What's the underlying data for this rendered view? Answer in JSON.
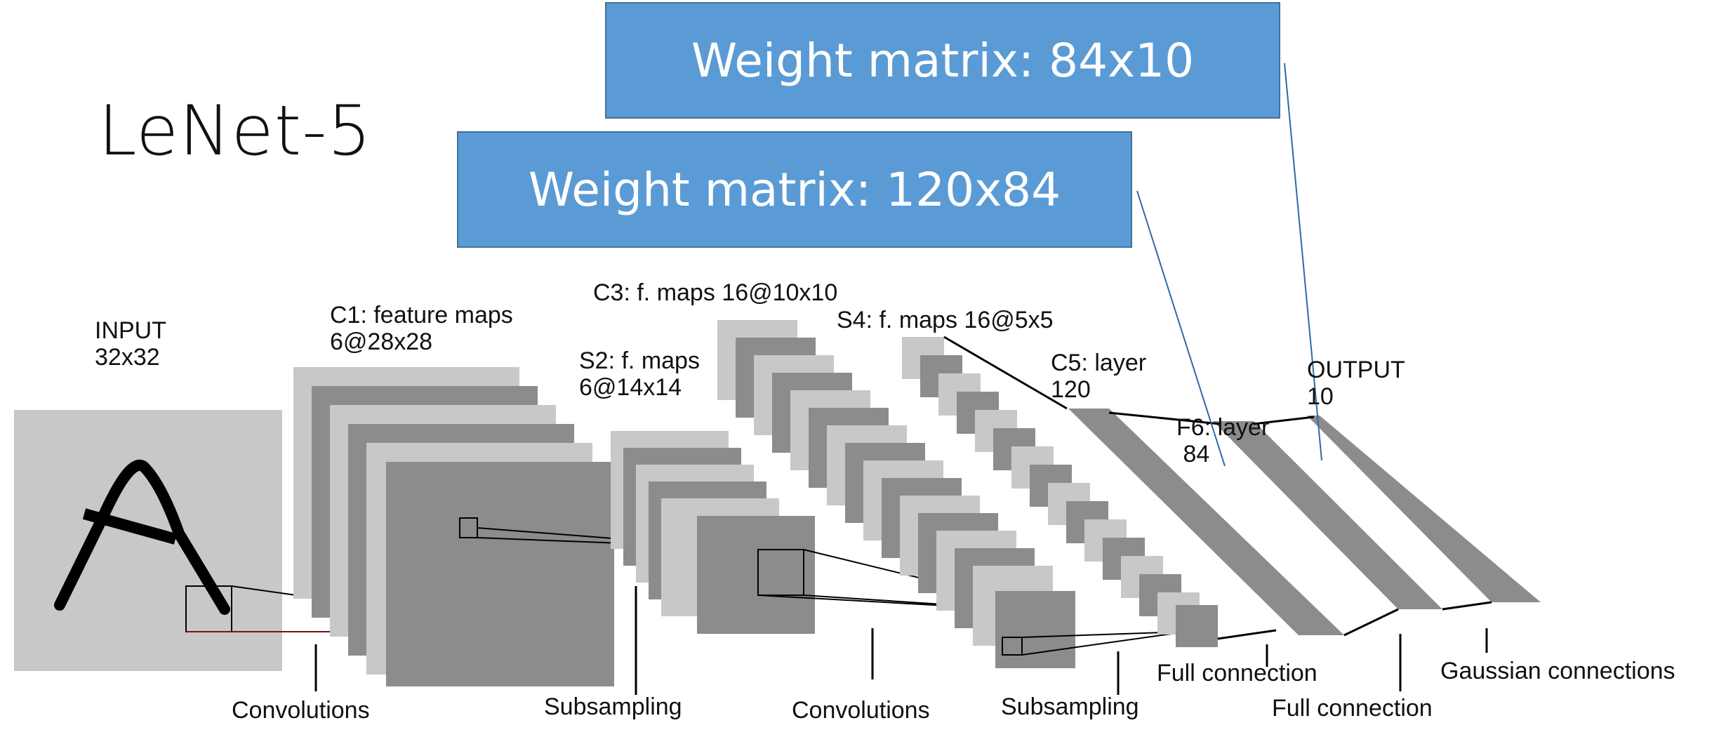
{
  "title": "LeNet-5",
  "callouts": {
    "fc2": "Weight matrix: 84x10",
    "fc1": "Weight matrix: 120x84"
  },
  "layers": {
    "input": {
      "line1": "INPUT",
      "line2": "32x32"
    },
    "c1": {
      "line1": "C1: feature maps",
      "line2": "6@28x28"
    },
    "s2": {
      "line1": "S2: f. maps",
      "line2": "6@14x14"
    },
    "c3": {
      "line1": "C3: f. maps 16@10x10"
    },
    "s4": {
      "line1": "S4: f. maps 16@5x5"
    },
    "c5": {
      "line1": "C5: layer",
      "line2": "120"
    },
    "f6": {
      "line1": "F6: layer",
      "line2": " 84"
    },
    "output": {
      "line1": "OUTPUT",
      "line2": "10"
    }
  },
  "operations": {
    "conv1": "Convolutions",
    "sub1": "Subsampling",
    "conv2": "Convolutions",
    "sub2": "Subsampling",
    "full1": "Full connection",
    "full2": "Full connection",
    "gauss": "Gaussian connections"
  },
  "colors": {
    "callout_fill": "#5b9bd5",
    "callout_border": "#41719c",
    "map_light": "#c8c8c8",
    "map_dark": "#8c8c8c",
    "input_bg": "#c8c8c8",
    "pointer_line": "#2e6aa6"
  }
}
